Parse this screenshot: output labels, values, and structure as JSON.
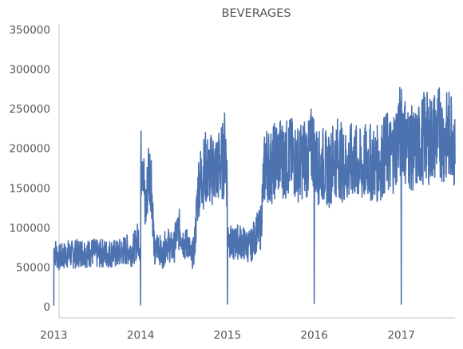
{
  "chart_data": {
    "type": "line",
    "title": "BEVERAGES",
    "xlabel": "",
    "ylabel": "",
    "x_ticks": [
      "2013",
      "2014",
      "2015",
      "2016",
      "2017"
    ],
    "y_ticks": [
      "0",
      "50000",
      "100000",
      "150000",
      "200000",
      "250000",
      "300000",
      "350000"
    ],
    "xlim": [
      "2012-09-01",
      "2017-10-01"
    ],
    "ylim": [
      0,
      350000
    ],
    "grid": false,
    "series_color": "#4c72b0",
    "series": [
      {
        "x": [
          "2013-01-01",
          "2013-01-02",
          "2013-01-20",
          "2013-02-10",
          "2013-03-01",
          "2013-03-25",
          "2013-04-15",
          "2013-05-05",
          "2013-05-25",
          "2013-06-15",
          "2013-07-05",
          "2013-07-25",
          "2013-08-15",
          "2013-09-05",
          "2013-09-25",
          "2013-10-15",
          "2013-11-05",
          "2013-11-25",
          "2013-12-10",
          "2013-12-24",
          "2013-12-31",
          "2014-01-01",
          "2014-01-02",
          "2014-01-10",
          "2014-01-20",
          "2014-01-31",
          "2014-02-01",
          "2014-02-15",
          "2014-03-01",
          "2014-03-15",
          "2014-04-01",
          "2014-04-20",
          "2014-05-01",
          "2014-05-20",
          "2014-06-01",
          "2014-06-15",
          "2014-07-01",
          "2014-07-10",
          "2014-07-20",
          "2014-08-01",
          "2014-08-15",
          "2014-09-01",
          "2014-09-15",
          "2014-10-01",
          "2014-10-15",
          "2014-11-01",
          "2014-11-15",
          "2014-12-01",
          "2014-12-15",
          "2014-12-24",
          "2014-12-31",
          "2015-01-01",
          "2015-01-02",
          "2015-01-20",
          "2015-02-10",
          "2015-03-01",
          "2015-03-20",
          "2015-04-10",
          "2015-05-01",
          "2015-05-20",
          "2015-06-01",
          "2015-06-10",
          "2015-06-20",
          "2015-07-01",
          "2015-07-20",
          "2015-08-10",
          "2015-09-01",
          "2015-09-20",
          "2015-10-10",
          "2015-11-01",
          "2015-11-20",
          "2015-12-10",
          "2015-12-24",
          "2015-12-31",
          "2016-01-01",
          "2016-01-02",
          "2016-01-20",
          "2016-02-10",
          "2016-03-01",
          "2016-03-20",
          "2016-04-10",
          "2016-05-01",
          "2016-05-20",
          "2016-06-10",
          "2016-07-01",
          "2016-07-20",
          "2016-08-10",
          "2016-09-01",
          "2016-09-20",
          "2016-10-10",
          "2016-11-01",
          "2016-11-20",
          "2016-12-10",
          "2016-12-24",
          "2016-12-31",
          "2017-01-01",
          "2017-01-02",
          "2017-01-20",
          "2017-02-10",
          "2017-03-01",
          "2017-03-20",
          "2017-04-10",
          "2017-05-01",
          "2017-05-20",
          "2017-06-10",
          "2017-07-01",
          "2017-07-20",
          "2017-08-05",
          "2017-08-15"
        ],
        "y": [
          1200,
          70000,
          60000,
          62000,
          65000,
          64000,
          66000,
          68000,
          65000,
          67000,
          64000,
          66000,
          65000,
          66000,
          64000,
          68000,
          70000,
          68000,
          75000,
          85000,
          70000,
          2000,
          170000,
          200000,
          110000,
          150000,
          170000,
          160000,
          60000,
          80000,
          60000,
          80000,
          75000,
          70000,
          90000,
          95000,
          80000,
          75000,
          80000,
          60000,
          70000,
          150000,
          160000,
          170000,
          165000,
          170000,
          168000,
          175000,
          180000,
          200000,
          150000,
          3000,
          90000,
          75000,
          80000,
          80000,
          75000,
          75000,
          90000,
          95000,
          150000,
          180000,
          175000,
          170000,
          180000,
          185000,
          180000,
          185000,
          180000,
          175000,
          185000,
          180000,
          200000,
          190000,
          4000,
          180000,
          170000,
          175000,
          165000,
          180000,
          185000,
          175000,
          170000,
          180000,
          175000,
          170000,
          180000,
          175000,
          175000,
          180000,
          190000,
          185000,
          200000,
          220000,
          200000,
          3000,
          230000,
          200000,
          195000,
          190000,
          200000,
          210000,
          205000,
          210000,
          215000,
          205000,
          210000,
          220000,
          180000
        ]
      }
    ]
  }
}
